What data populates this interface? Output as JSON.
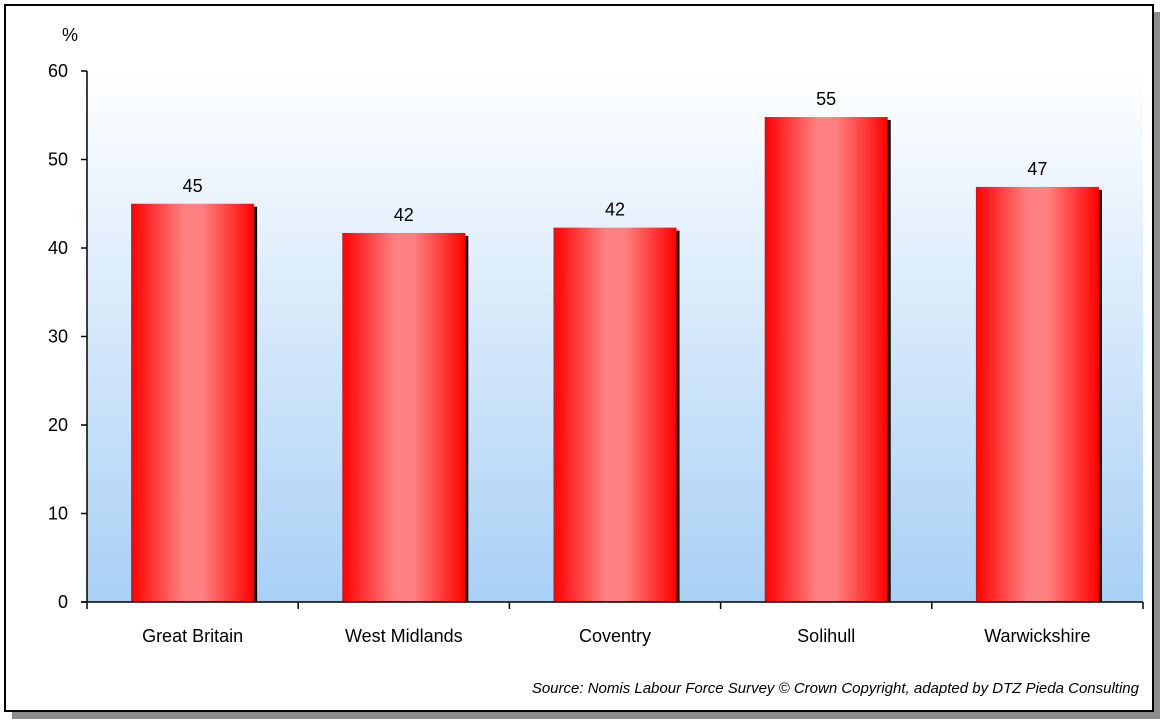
{
  "chart_data": {
    "type": "bar",
    "title": "",
    "xlabel": "",
    "ylabel": "%",
    "categories": [
      "Great Britain",
      "West Midlands",
      "Coventry",
      "Solihull",
      "Warwickshire"
    ],
    "values": [
      45,
      41.7,
      42.3,
      54.8,
      46.9
    ],
    "value_labels": [
      "45",
      "42",
      "42",
      "55",
      "47"
    ],
    "ylim": [
      0,
      60
    ],
    "yticks": [
      0,
      10,
      20,
      30,
      40,
      50,
      60
    ],
    "ytick_labels": [
      "0",
      "10",
      "20",
      "30",
      "40",
      "50",
      "60"
    ],
    "grid": false,
    "legend": "none",
    "colors": {
      "bar_edge": "#ff0000",
      "bar_center": "#ff8080",
      "plot_bg_top": "#ffffff",
      "plot_bg_bottom": "#a9d0f5"
    }
  },
  "source": "Source: Nomis Labour Force Survey © Crown Copyright, adapted by DTZ Pieda Consulting"
}
